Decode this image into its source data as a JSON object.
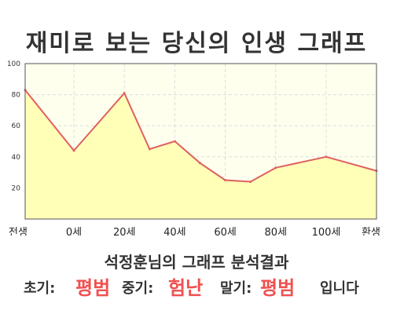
{
  "title": "재미로 보는 당신의 인생 그래프",
  "subtitle": "석정훈님의 그래프 분석결과",
  "result": {
    "early_label": "초기:",
    "early_value": "평범",
    "middle_label": "중기:",
    "middle_value": "험난",
    "late_label": "말기:",
    "late_value": "평범",
    "tail": "입니다"
  },
  "colors": {
    "line": "#e06060",
    "fill": "#ffffb8",
    "plot_bg": "#ffffee",
    "grid": "#dddddd",
    "result_value": "#f05050"
  },
  "chart_data": {
    "type": "area",
    "title": "재미로 보는 당신의 인생 그래프",
    "xlabel": "",
    "ylabel": "",
    "ylim": [
      0,
      100
    ],
    "yticks": [
      20,
      40,
      60,
      80,
      100
    ],
    "xticks": [
      "전생",
      "0세",
      "20세",
      "40세",
      "60세",
      "80세",
      "100세",
      "환생"
    ],
    "grid": true,
    "series": [
      {
        "values": [
          {
            "x": "전생",
            "y": 83
          },
          {
            "x": "0세",
            "y": 44
          },
          {
            "x": "20세",
            "y": 81
          },
          {
            "x": "30세",
            "y": 45
          },
          {
            "x": "40세",
            "y": 50
          },
          {
            "x": "50세",
            "y": 36
          },
          {
            "x": "60세",
            "y": 25
          },
          {
            "x": "70세",
            "y": 24
          },
          {
            "x": "80세",
            "y": 33
          },
          {
            "x": "100세",
            "y": 40
          },
          {
            "x": "환생",
            "y": 31
          }
        ]
      }
    ]
  }
}
